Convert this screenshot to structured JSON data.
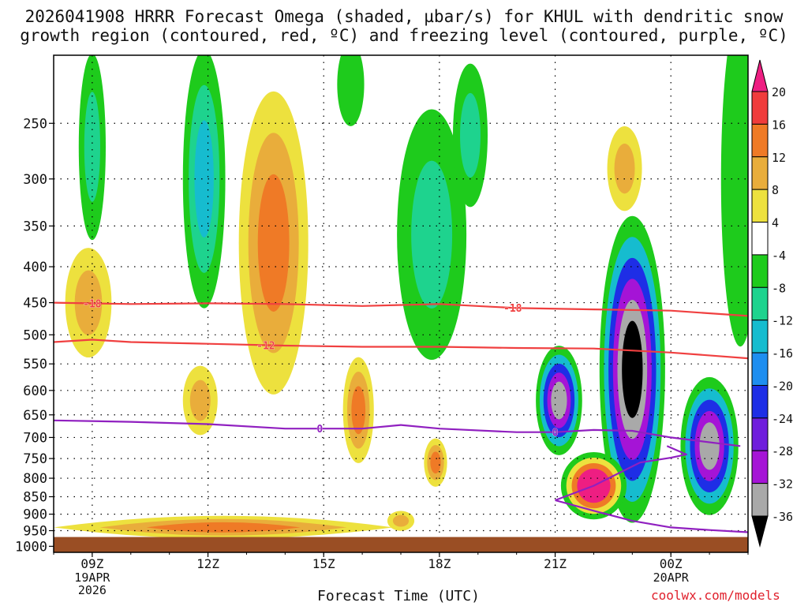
{
  "title": {
    "line1": "2026041908 HRRR Forecast Omega (shaded, µbar/s) for KHUL with dendritic snow",
    "line2": "growth region (contoured, red, ºC) and freezing level (contoured, purple, ºC)"
  },
  "credit": "coolwx.com/models",
  "chart_data": {
    "type": "heatmap",
    "model": "HRRR",
    "station": "KHUL",
    "run": "2026041908",
    "xlabel": "Forecast Time (UTC)",
    "ylabel": "",
    "x_ticks": [
      {
        "time": "2026-04-19T09:00Z",
        "label": "09Z",
        "sub": [
          "19APR",
          "2026"
        ]
      },
      {
        "time": "2026-04-19T12:00Z",
        "label": "12Z",
        "sub": []
      },
      {
        "time": "2026-04-19T15:00Z",
        "label": "15Z",
        "sub": []
      },
      {
        "time": "2026-04-19T18:00Z",
        "label": "18Z",
        "sub": []
      },
      {
        "time": "2026-04-19T21:00Z",
        "label": "21Z",
        "sub": []
      },
      {
        "time": "2026-04-20T00:00Z",
        "label": "00Z",
        "sub": [
          "20APR"
        ]
      }
    ],
    "xlim": [
      "2026-04-19T08:00Z",
      "2026-04-20T02:00Z"
    ],
    "y_scale": "log",
    "y_reversed": true,
    "y_ticks": [
      250,
      300,
      350,
      400,
      450,
      500,
      550,
      600,
      650,
      700,
      750,
      800,
      850,
      900,
      950,
      1000
    ],
    "ylim": [
      200,
      1020
    ],
    "grid": true,
    "ground_level_hpa": 970,
    "colorbar": {
      "units": "µbar/s",
      "labels": [
        "20",
        "16",
        "12",
        "8",
        "4",
        "-4",
        "-8",
        "-12",
        "-16",
        "-20",
        "-24",
        "-28",
        "-32",
        "-36"
      ],
      "bins": [
        {
          "lo": 20,
          "hi": null,
          "color": "#ee1e82"
        },
        {
          "lo": 16,
          "hi": 20,
          "color": "#f03c3c"
        },
        {
          "lo": 12,
          "hi": 16,
          "color": "#ef7a26"
        },
        {
          "lo": 8,
          "hi": 12,
          "color": "#e9ad3b"
        },
        {
          "lo": 4,
          "hi": 8,
          "color": "#ede13e"
        },
        {
          "lo": -4,
          "hi": 4,
          "color": "#ffffff"
        },
        {
          "lo": -8,
          "hi": -4,
          "color": "#1ecb1c"
        },
        {
          "lo": -12,
          "hi": -8,
          "color": "#1ed38e"
        },
        {
          "lo": -16,
          "hi": -12,
          "color": "#16bccf"
        },
        {
          "lo": -20,
          "hi": -16,
          "color": "#1e8ef0"
        },
        {
          "lo": -24,
          "hi": -20,
          "color": "#1e2ee6"
        },
        {
          "lo": -28,
          "hi": -24,
          "color": "#6f1edc"
        },
        {
          "lo": -32,
          "hi": -28,
          "color": "#a514d6"
        },
        {
          "lo": -36,
          "hi": -32,
          "color": "#a9a9a9"
        },
        {
          "lo": null,
          "hi": -36,
          "color": "#000000"
        }
      ]
    },
    "shaded_features": [
      {
        "kind": "ellipse",
        "t": 9.0,
        "p": 270,
        "sx": 0.35,
        "sy": 80,
        "levels": [
          -6,
          -10
        ]
      },
      {
        "kind": "ellipse",
        "t": 11.9,
        "p": 300,
        "sx": 0.55,
        "sy": 120,
        "levels": [
          -6,
          -10,
          -14
        ]
      },
      {
        "kind": "ellipse",
        "t": 17.8,
        "p": 360,
        "sx": 0.9,
        "sy": 140,
        "levels": [
          -6,
          -10
        ]
      },
      {
        "kind": "ellipse",
        "t": 18.8,
        "p": 260,
        "sx": 0.45,
        "sy": 60,
        "levels": [
          -6,
          -10
        ]
      },
      {
        "kind": "ellipse",
        "t": 15.7,
        "p": 220,
        "sx": 0.35,
        "sy": 30,
        "levels": [
          -6
        ]
      },
      {
        "kind": "ellipse",
        "t": 8.9,
        "p": 450,
        "sx": 0.6,
        "sy": 80,
        "levels": [
          6,
          10
        ]
      },
      {
        "kind": "ellipse",
        "t": 13.7,
        "p": 370,
        "sx": 0.9,
        "sy": 170,
        "levels": [
          6,
          10,
          14
        ]
      },
      {
        "kind": "ellipse",
        "t": 11.8,
        "p": 620,
        "sx": 0.45,
        "sy": 70,
        "levels": [
          6,
          10
        ]
      },
      {
        "kind": "ellipse",
        "t": 15.9,
        "p": 640,
        "sx": 0.4,
        "sy": 110,
        "levels": [
          6,
          10,
          14
        ]
      },
      {
        "kind": "ellipse",
        "t": 17.9,
        "p": 760,
        "sx": 0.3,
        "sy": 60,
        "levels": [
          6,
          10,
          14
        ]
      },
      {
        "kind": "ellipse",
        "t": 17.0,
        "p": 920,
        "sx": 0.35,
        "sy": 30,
        "levels": [
          6,
          10
        ]
      },
      {
        "kind": "ellipse",
        "t": 21.1,
        "p": 620,
        "sx": 0.6,
        "sy": 110,
        "levels": [
          -6,
          -14,
          -22,
          -30,
          -36
        ]
      },
      {
        "kind": "ellipse",
        "t": 23.0,
        "p": 560,
        "sx": 0.85,
        "sy": 260,
        "levels": [
          -6,
          -14,
          -22,
          -30,
          -34,
          -40
        ]
      },
      {
        "kind": "ellipse",
        "t": 25.0,
        "p": 720,
        "sx": 0.75,
        "sy": 160,
        "levels": [
          -6,
          -14,
          -22,
          -30,
          -34
        ]
      },
      {
        "kind": "ellipse",
        "t": 22.0,
        "p": 820,
        "sx": 0.85,
        "sy": 90,
        "levels": [
          -6,
          6,
          14,
          20,
          24
        ]
      },
      {
        "kind": "ellipse",
        "t": 22.8,
        "p": 290,
        "sx": 0.45,
        "sy": 40,
        "levels": [
          6,
          10
        ]
      },
      {
        "kind": "ellipse",
        "t": 25.8,
        "p": 300,
        "sx": 0.5,
        "sy": 150,
        "levels": [
          -6
        ]
      },
      {
        "kind": "band",
        "t0": 8.0,
        "t1": 16.8,
        "p": 940,
        "dp": 35,
        "levels": [
          6,
          10,
          14
        ]
      }
    ],
    "contours": [
      {
        "series": "dendritic snow growth region",
        "value": -18,
        "color": "#f04040",
        "label": "-18",
        "label_at": [
          9.0,
          19.9
        ],
        "points": [
          [
            8.0,
            450
          ],
          [
            10.0,
            452
          ],
          [
            12.0,
            451
          ],
          [
            14.0,
            452
          ],
          [
            16.0,
            455
          ],
          [
            18.0,
            452
          ],
          [
            20.0,
            458
          ],
          [
            22.0,
            460
          ],
          [
            24.0,
            462
          ],
          [
            26.0,
            470
          ]
        ]
      },
      {
        "series": "dendritic snow growth region",
        "value": -12,
        "color": "#f04040",
        "label": "-12",
        "label_at": [
          13.5
        ],
        "points": [
          [
            8.0,
            512
          ],
          [
            9.0,
            508
          ],
          [
            10.0,
            512
          ],
          [
            12.0,
            515
          ],
          [
            14.0,
            518
          ],
          [
            16.0,
            520
          ],
          [
            18.0,
            520
          ],
          [
            20.0,
            522
          ],
          [
            22.0,
            523
          ],
          [
            24.0,
            530
          ],
          [
            26.0,
            540
          ]
        ]
      },
      {
        "series": "freezing level",
        "value": 0,
        "color": "#9020c0",
        "label": "0",
        "label_at": [
          14.9,
          21.0
        ],
        "points": [
          [
            8.0,
            662
          ],
          [
            10.0,
            665
          ],
          [
            12.0,
            670
          ],
          [
            14.0,
            680
          ],
          [
            16.0,
            680
          ],
          [
            17.0,
            672
          ],
          [
            18.0,
            680
          ],
          [
            20.0,
            688
          ],
          [
            21.0,
            688
          ],
          [
            22.0,
            683
          ],
          [
            23.0,
            685
          ],
          [
            24.0,
            700
          ],
          [
            25.8,
            720
          ]
        ]
      },
      {
        "series": "freezing level",
        "value": 0,
        "color": "#9020c0",
        "label": "",
        "label_at": [],
        "points": [
          [
            21.0,
            860
          ],
          [
            22.0,
            820
          ],
          [
            23.2,
            760
          ],
          [
            24.0,
            748
          ],
          [
            24.4,
            740
          ],
          [
            23.9,
            720
          ]
        ]
      },
      {
        "series": "freezing level",
        "value": 0,
        "color": "#9020c0",
        "label": "",
        "label_at": [],
        "points": [
          [
            21.0,
            860
          ],
          [
            22.0,
            890
          ],
          [
            23.0,
            920
          ],
          [
            24.0,
            940
          ],
          [
            25.0,
            948
          ],
          [
            26.0,
            955
          ]
        ]
      }
    ]
  }
}
